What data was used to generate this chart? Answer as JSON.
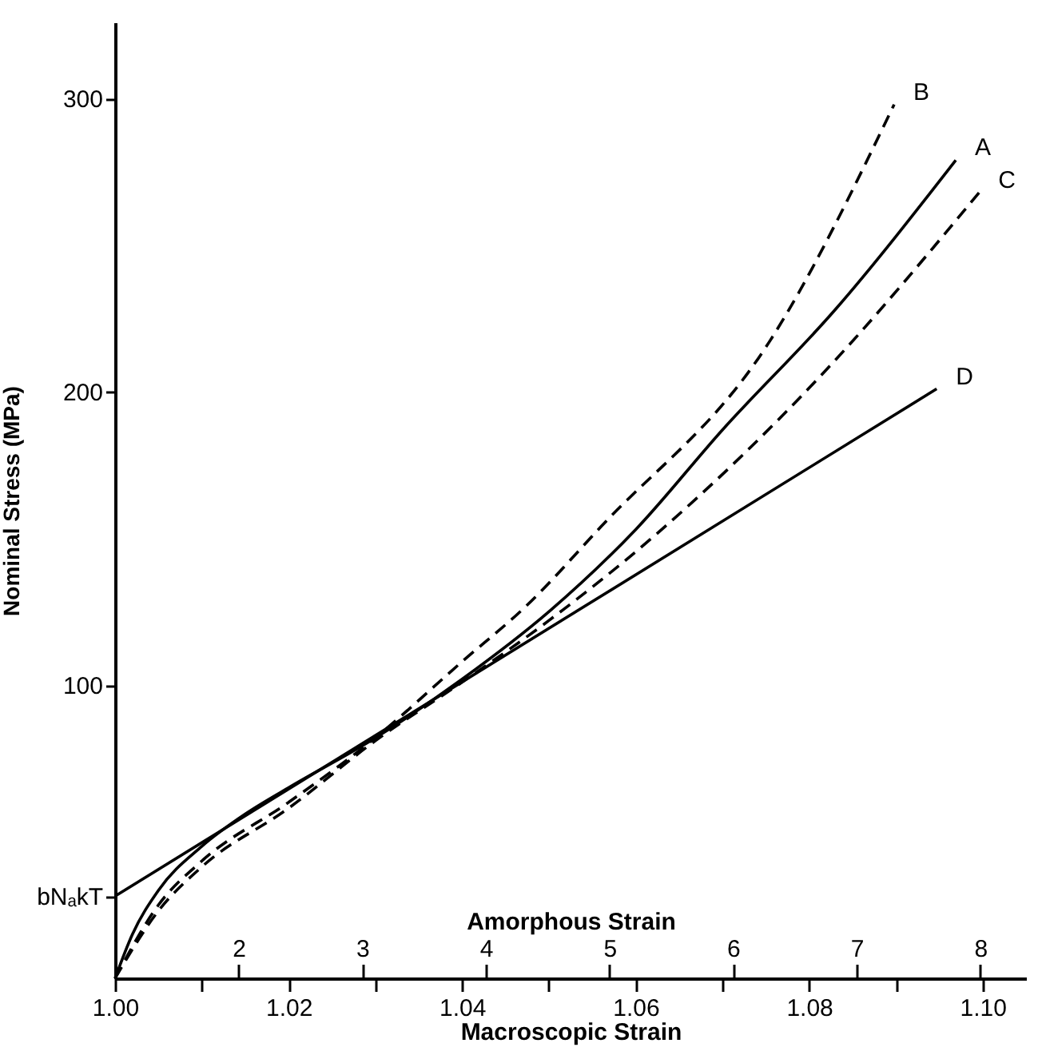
{
  "chart_data": {
    "type": "line",
    "xlabel": "Macroscopic Strain",
    "ylabel": "Nominal Stress (MPa)",
    "x2label": "Amorphous Strain",
    "xlim": [
      1.0,
      1.105
    ],
    "ylim": [
      0,
      326
    ],
    "xticks": [
      {
        "value": 1.0,
        "label": "1.00"
      },
      {
        "value": 1.01,
        "label": null
      },
      {
        "value": 1.02,
        "label": "1.02"
      },
      {
        "value": 1.03,
        "label": null
      },
      {
        "value": 1.04,
        "label": "1.04"
      },
      {
        "value": 1.05,
        "label": null
      },
      {
        "value": 1.06,
        "label": "1.06"
      },
      {
        "value": 1.07,
        "label": null
      },
      {
        "value": 1.08,
        "label": "1.08"
      },
      {
        "value": 1.09,
        "label": null
      },
      {
        "value": 1.1,
        "label": "1.10"
      }
    ],
    "yticks": [
      {
        "value": 28,
        "label": "bNₐkT"
      },
      100,
      200,
      300
    ],
    "x2lim": [
      1.0,
      8.37
    ],
    "x2ticks": [
      2,
      3,
      4,
      5,
      6,
      7,
      8
    ],
    "marker": "none",
    "series": [
      {
        "name": "A",
        "color": "#000000",
        "line_style": "solid",
        "x": [
          1.0,
          1.002,
          1.005,
          1.01,
          1.015,
          1.02,
          1.03,
          1.04,
          1.05,
          1.06,
          1.07,
          1.083,
          1.0969
        ],
        "values": [
          0,
          15,
          30,
          45,
          56,
          65,
          82,
          102,
          125,
          153,
          187,
          228,
          279
        ]
      },
      {
        "name": "B",
        "color": "#000000",
        "line_style": "dashed",
        "x": [
          1.0,
          1.005,
          1.01,
          1.02,
          1.03,
          1.04,
          1.0474,
          1.056,
          1.0754,
          1.0898
        ],
        "values": [
          0,
          25,
          40,
          60,
          82,
          108,
          127,
          154,
          217,
          298
        ]
      },
      {
        "name": "C",
        "color": "#000000",
        "line_style": "dashed",
        "x": [
          1.0,
          1.005,
          1.01,
          1.02,
          1.03,
          1.04,
          1.05,
          1.0626,
          1.0815,
          1.0996
        ],
        "values": [
          0,
          23,
          38,
          58,
          81,
          101,
          122,
          152,
          206,
          268
        ]
      },
      {
        "name": "D",
        "color": "#000000",
        "line_style": "solid",
        "x": [
          1.0,
          1.0947
        ],
        "values": [
          28,
          201
        ]
      }
    ]
  }
}
